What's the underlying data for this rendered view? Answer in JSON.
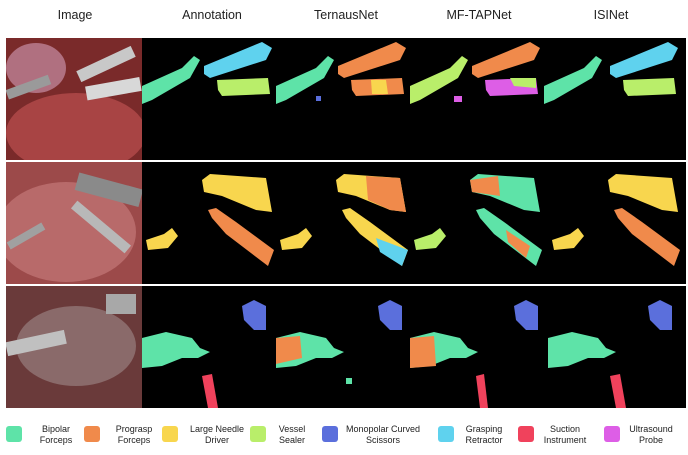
{
  "headers": {
    "image": "Image",
    "annotation": "Annotation",
    "ternausnet": "TernausNet",
    "mftapnet": "MF-TAPNet",
    "isinet": "ISINet"
  },
  "legend": [
    {
      "label1": "Bipolar",
      "label2": "Forceps",
      "color": "#5ee3a8"
    },
    {
      "label1": "Prograsp",
      "label2": "Forceps",
      "color": "#f08a4b"
    },
    {
      "label1": "Large Needle",
      "label2": "Driver",
      "color": "#f8d64e"
    },
    {
      "label1": "Vessel",
      "label2": "Sealer",
      "color": "#b9ee6a"
    },
    {
      "label1": "Monopolar Curved",
      "label2": "Scissors",
      "color": "#5b6fdc"
    },
    {
      "label1": "Grasping",
      "label2": "Retractor",
      "color": "#5fd2ee"
    },
    {
      "label1": "Suction",
      "label2": "Instrument",
      "color": "#f0425c"
    },
    {
      "label1": "Ultrasound",
      "label2": "Probe",
      "color": "#dd5ee6"
    }
  ],
  "colors": {
    "bipolar": "#5ee3a8",
    "prograsp": "#f08a4b",
    "needle": "#f8d64e",
    "sealer": "#b9ee6a",
    "monopolar": "#5b6fdc",
    "retractor": "#5fd2ee",
    "suction": "#f0425c",
    "ultrasound": "#dd5ee6",
    "tissue": "#9c3a3a"
  }
}
